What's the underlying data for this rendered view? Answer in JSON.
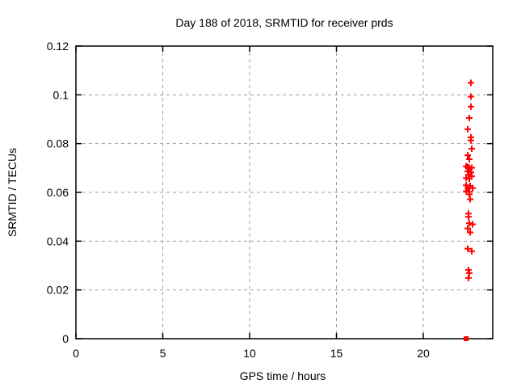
{
  "chart_data": {
    "type": "scatter",
    "title": "Day 188 of 2018, SRMTID for receiver prds",
    "xlabel": "GPS time / hours",
    "ylabel": "SRMTID / TECUs",
    "xlim": [
      0,
      24
    ],
    "ylim": [
      0,
      0.12
    ],
    "xticks": [
      0,
      5,
      10,
      15,
      20
    ],
    "xtick_labels": [
      "0",
      "5",
      "10",
      "15",
      "20"
    ],
    "yticks": [
      0,
      0.02,
      0.04,
      0.06,
      0.08,
      0.1,
      0.12
    ],
    "ytick_labels": [
      "0",
      "0.02",
      "0.04",
      "0.06",
      "0.08",
      "0.1",
      "0.12"
    ],
    "grid": true,
    "legend": "none",
    "colors": {
      "marker": "#ff0000",
      "grid": "#9c9c9c",
      "axis": "#000000",
      "background": "#ffffff"
    },
    "series": [
      {
        "name": "SRMTID values",
        "marker": "plus",
        "color": "#ff0000",
        "points": [
          [
            22.74,
            0.1049
          ],
          [
            22.74,
            0.0993
          ],
          [
            22.74,
            0.0952
          ],
          [
            22.65,
            0.0905
          ],
          [
            22.56,
            0.0859
          ],
          [
            22.74,
            0.0826
          ],
          [
            22.74,
            0.0813
          ],
          [
            22.79,
            0.0779
          ],
          [
            22.56,
            0.0752
          ],
          [
            22.65,
            0.0736
          ],
          [
            22.47,
            0.0707
          ],
          [
            22.56,
            0.0704
          ],
          [
            22.65,
            0.0701
          ],
          [
            22.79,
            0.0701
          ],
          [
            22.6,
            0.0698
          ],
          [
            22.56,
            0.0686
          ],
          [
            22.74,
            0.0682
          ],
          [
            22.6,
            0.0672
          ],
          [
            22.79,
            0.0666
          ],
          [
            22.47,
            0.0659
          ],
          [
            22.65,
            0.0656
          ],
          [
            22.47,
            0.0629
          ],
          [
            22.7,
            0.0626
          ],
          [
            22.56,
            0.0618
          ],
          [
            22.84,
            0.0618
          ],
          [
            22.47,
            0.0605
          ],
          [
            22.65,
            0.0602
          ],
          [
            22.65,
            0.0592
          ],
          [
            22.7,
            0.0572
          ],
          [
            22.6,
            0.0513
          ],
          [
            22.6,
            0.05
          ],
          [
            22.65,
            0.0473
          ],
          [
            22.84,
            0.0469
          ],
          [
            22.56,
            0.0452
          ],
          [
            22.7,
            0.0436
          ],
          [
            22.56,
            0.0369
          ],
          [
            22.79,
            0.0359
          ],
          [
            22.6,
            0.0282
          ],
          [
            22.65,
            0.0269
          ],
          [
            22.6,
            0.0249
          ]
        ]
      },
      {
        "name": "zero marker",
        "marker": "filled-square",
        "color": "#ff0000",
        "points": [
          [
            22.47,
            0.0
          ]
        ]
      }
    ]
  }
}
